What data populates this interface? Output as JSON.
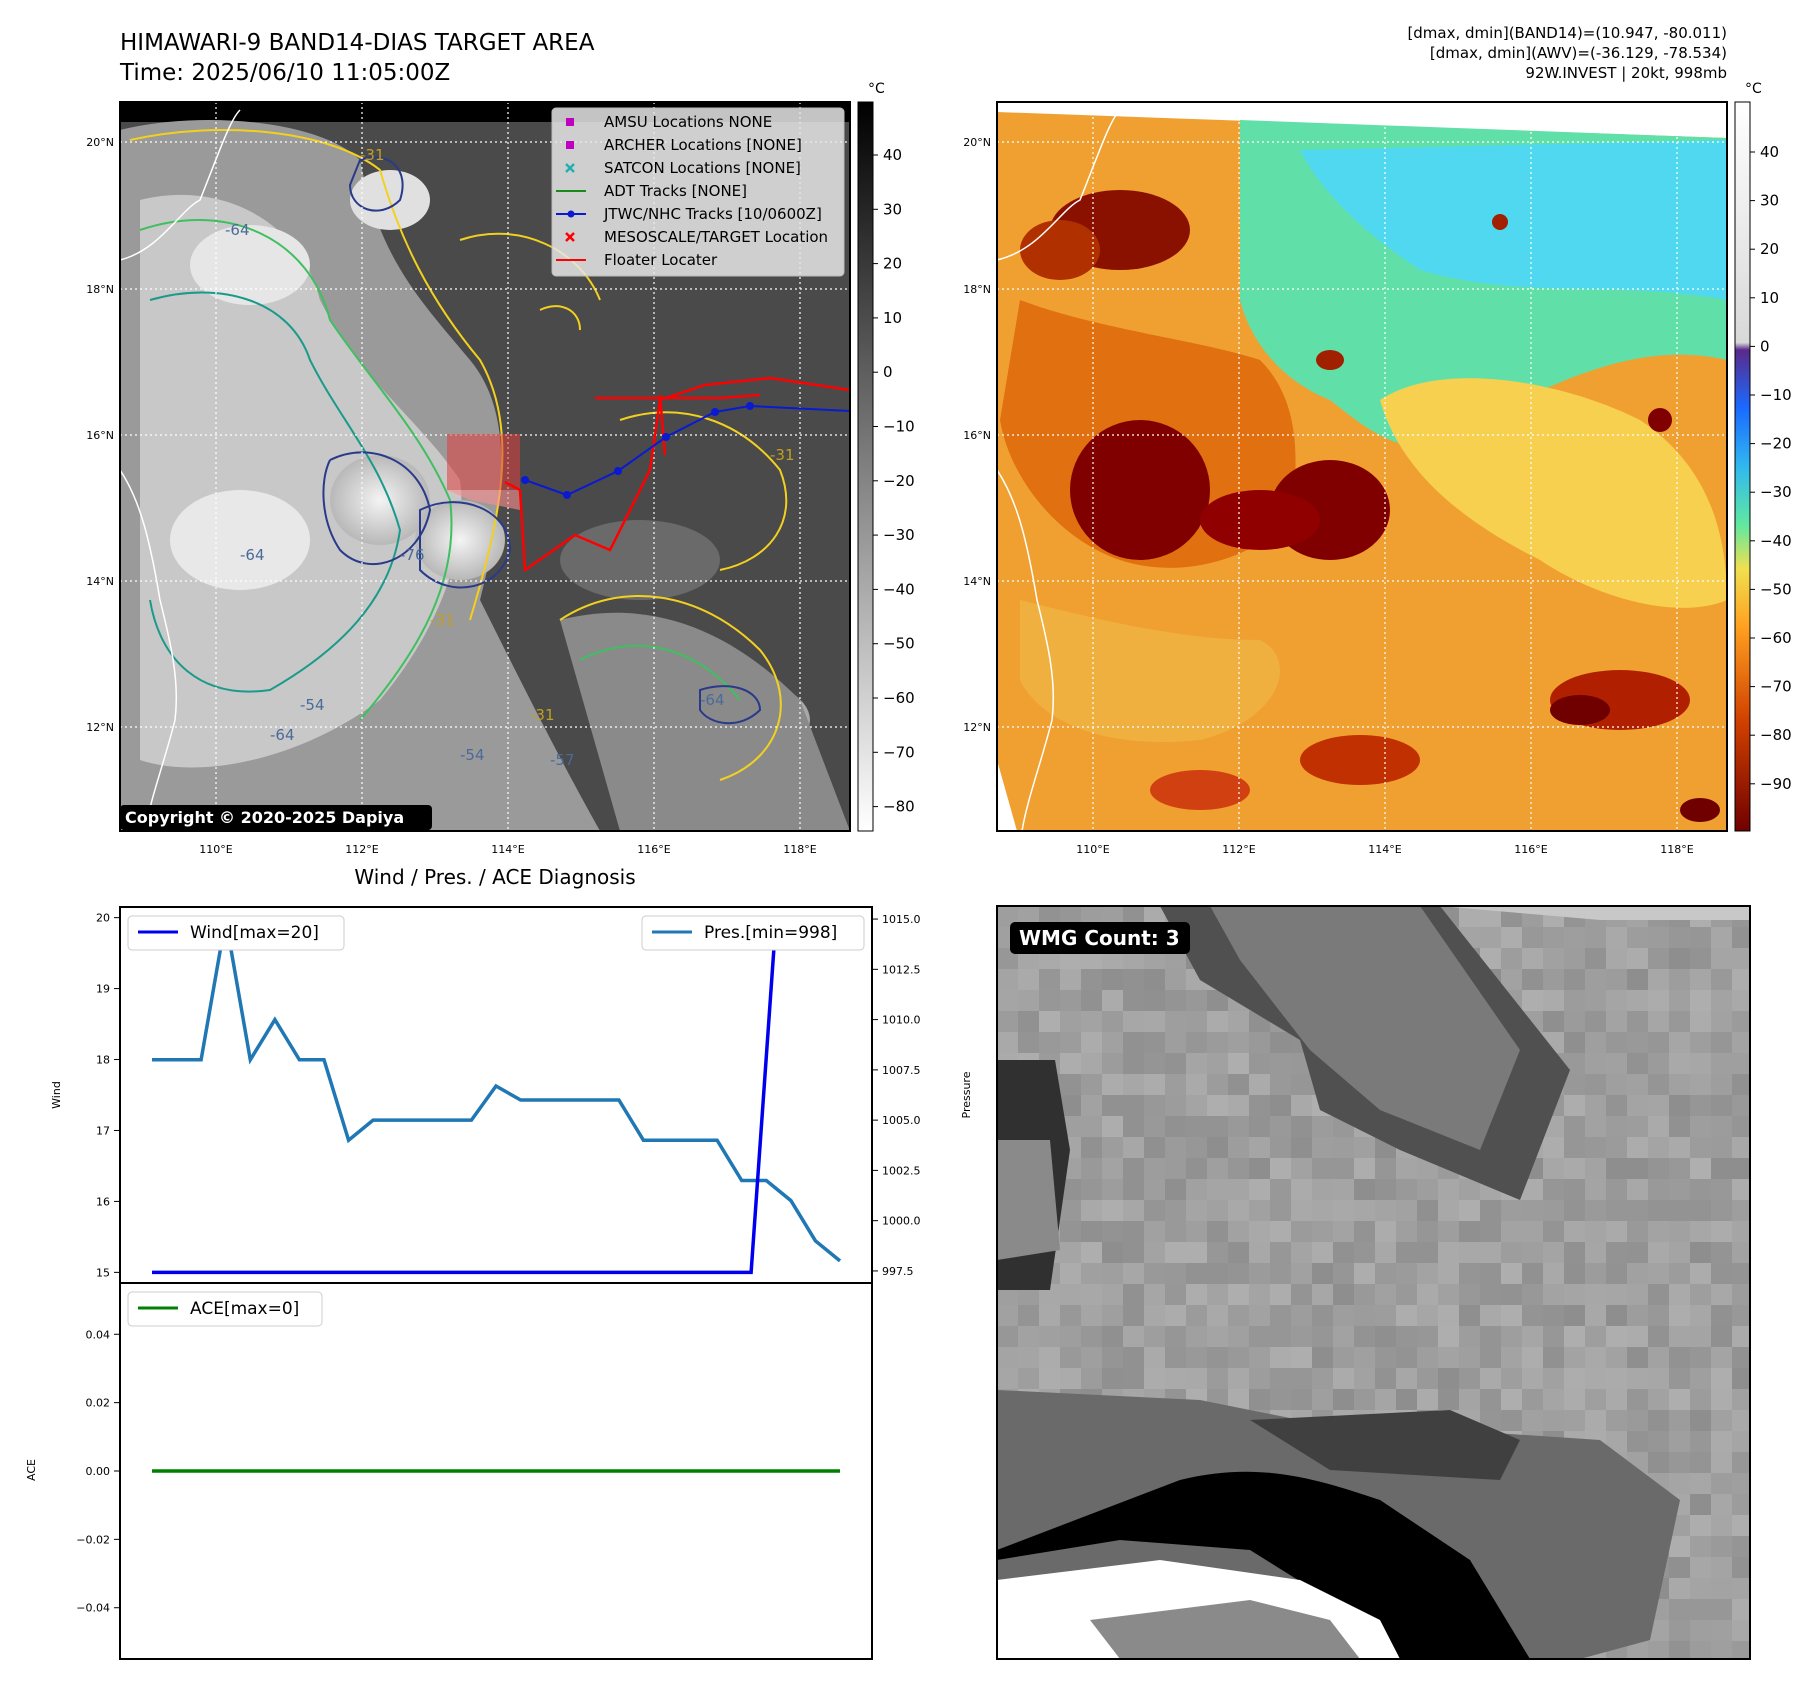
{
  "header": {
    "title": "HIMAWARI-9 BAND14-DIAS TARGET AREA",
    "time": "Time: 2025/06/10 11:05:00Z",
    "info_line1": "[dmax, dmin](BAND14)=(10.947, -80.011)",
    "info_line2": "[dmax, dmin](AWV)=(-36.129, -78.534)",
    "info_line3": "92W.INVEST | 20kt, 998mb"
  },
  "map_axes": {
    "lon_ticks": [
      "110°E",
      "112°E",
      "114°E",
      "116°E",
      "118°E"
    ],
    "lat_ticks": [
      "20°N",
      "18°N",
      "16°N",
      "14°N",
      "12°N"
    ]
  },
  "colorbar_left": {
    "unit": "°C",
    "ticks": [
      "40",
      "30",
      "20",
      "10",
      "0",
      "−10",
      "−20",
      "−30",
      "−40",
      "−50",
      "−60",
      "−70",
      "−80"
    ]
  },
  "colorbar_right": {
    "unit": "°C",
    "ticks": [
      "40",
      "30",
      "20",
      "10",
      "0",
      "−10",
      "−20",
      "−30",
      "−40",
      "−50",
      "−60",
      "−70",
      "−80",
      "−90"
    ]
  },
  "legend": {
    "items": [
      {
        "label": "AMSU Locations NONE",
        "color": "#c000c0",
        "marker": "square"
      },
      {
        "label": "ARCHER Locations [NONE]",
        "color": "#c000c0",
        "marker": "square"
      },
      {
        "label": "SATCON Locations [NONE]",
        "color": "#20b0b0",
        "marker": "x"
      },
      {
        "label": "ADT Tracks [NONE]",
        "color": "#1a8a1a",
        "marker": "line"
      },
      {
        "label": "JTWC/NHC Tracks [10/0600Z]",
        "color": "#0a1ad0",
        "marker": "line-dot"
      },
      {
        "label": "MESOSCALE/TARGET Location",
        "color": "#ff0000",
        "marker": "x"
      },
      {
        "label": "Floater Locater",
        "color": "#ff0000",
        "marker": "line"
      }
    ]
  },
  "contour_labels": [
    "-64",
    "-31",
    "-76",
    "-54",
    "-64",
    "-31",
    "-31",
    "-64",
    "-54",
    "-64",
    "-31",
    "-57"
  ],
  "copyright": "Copyright © 2020-2025 Dapiya",
  "diag_title": "Wind / Pres. / ACE Diagnosis",
  "wmg": {
    "label": "WMG Count: 3"
  },
  "chart_data": [
    {
      "type": "line",
      "title": "Wind / Pres. / ACE Diagnosis",
      "ylabel": "Wind",
      "y2label": "Pressure",
      "ylim": [
        14.85,
        20.15
      ],
      "y2lim": [
        996.9,
        1015.6
      ],
      "y_ticks": [
        "20",
        "19",
        "18",
        "17",
        "16",
        "15"
      ],
      "y2_ticks": [
        "1015.0",
        "1012.5",
        "1010.0",
        "1007.5",
        "1005.0",
        "1002.5",
        "1000.0",
        "997.5"
      ],
      "series": [
        {
          "name": "Wind[max=20]",
          "color": "#0000ee",
          "axis": "left",
          "values": [
            15,
            15,
            15,
            15,
            15,
            15,
            15,
            15,
            15,
            15,
            15,
            15,
            15,
            15,
            15,
            15,
            15,
            15,
            15,
            15,
            15,
            15,
            15,
            15,
            15,
            20,
            20,
            20
          ]
        },
        {
          "name": "Pres.[min=998]",
          "color": "#1f77b4",
          "axis": "right",
          "values": [
            1008,
            1008,
            1008,
            1015,
            1008,
            1010,
            1008,
            1008,
            1004,
            1005,
            1005,
            1005,
            1005,
            1005,
            1006.7,
            1006,
            1006,
            1006,
            1006,
            1006,
            1004,
            1004,
            1004,
            1004,
            1002,
            1002,
            1001,
            999,
            998
          ]
        }
      ]
    },
    {
      "type": "line",
      "ylabel": "ACE",
      "ylim": [
        -0.055,
        0.055
      ],
      "y_ticks": [
        "0.04",
        "0.02",
        "0.00",
        "−0.02",
        "−0.04"
      ],
      "series": [
        {
          "name": "ACE[max=0]",
          "color": "#008000",
          "values": [
            0,
            0,
            0,
            0,
            0,
            0,
            0,
            0,
            0,
            0,
            0,
            0,
            0,
            0,
            0,
            0,
            0,
            0,
            0,
            0,
            0,
            0,
            0,
            0,
            0,
            0,
            0,
            0
          ]
        }
      ]
    }
  ]
}
